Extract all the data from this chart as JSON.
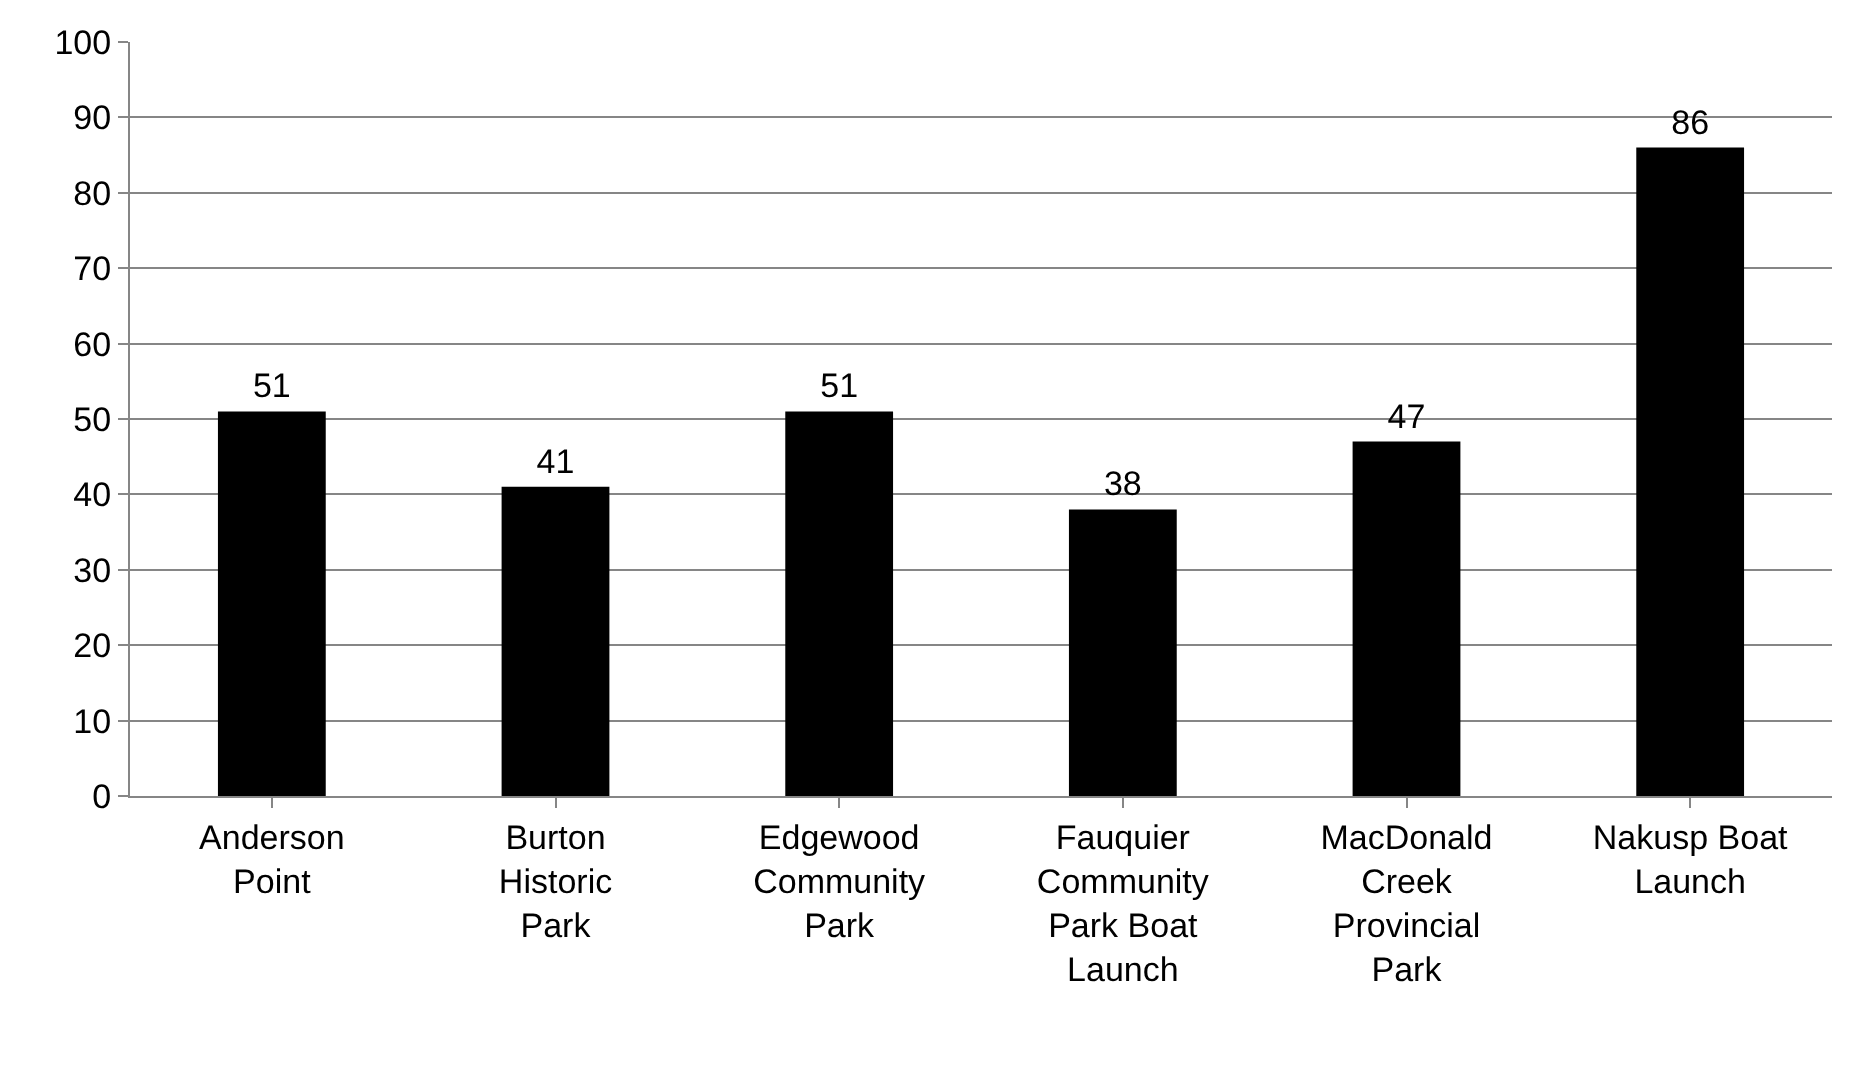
{
  "chart_data": {
    "type": "bar",
    "categories": [
      "Anderson Point",
      "Burton Historic Park",
      "Edgewood Community Park",
      "Fauquier Community Park Boat Launch",
      "MacDonald Creek Provincial Park",
      "Nakusp Boat Launch"
    ],
    "values": [
      51,
      41,
      51,
      38,
      47,
      86
    ],
    "color": "#000000",
    "ylim": [
      0,
      100
    ],
    "yticks": [
      0,
      10,
      20,
      30,
      40,
      50,
      60,
      70,
      80,
      90,
      100
    ],
    "grid": "y",
    "data_labels": true,
    "legend": false
  }
}
